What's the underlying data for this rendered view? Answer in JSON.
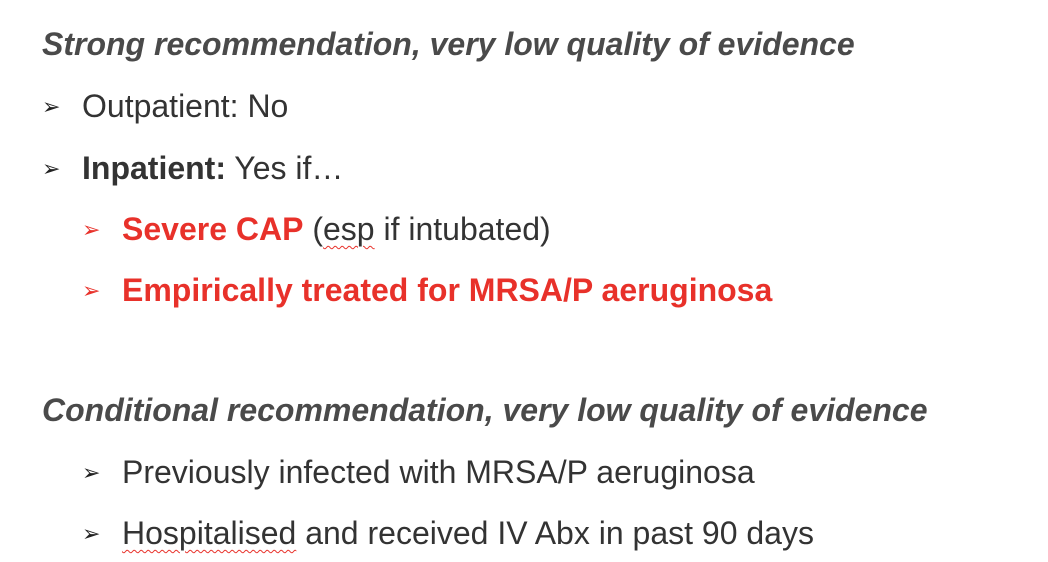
{
  "sections": [
    {
      "heading": "Strong recommendation, very low quality of evidence",
      "bullet": "➢",
      "items": [
        {
          "label": "Outpatient: No"
        },
        {
          "bold": "Inpatient:",
          "rest": " Yes if…"
        },
        {
          "bold": "Severe CAP",
          "rest_pre": " (",
          "squiggle": "esp",
          "rest_post": " if intubated)"
        },
        {
          "bold": "Empirically treated for MRSA/P aeruginosa"
        }
      ]
    },
    {
      "heading": "Conditional recommendation, very low quality of evidence",
      "items": [
        {
          "label": "Previously infected with MRSA/P aeruginosa"
        },
        {
          "squiggle": "Hospitalised",
          "rest": " and received IV Abx in past 90 days"
        }
      ]
    }
  ],
  "colors": {
    "accent": "#e8312a",
    "text": "#333333",
    "heading": "#4a4a4a"
  }
}
